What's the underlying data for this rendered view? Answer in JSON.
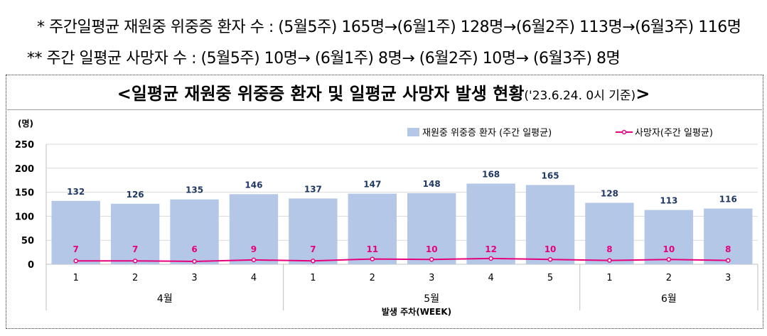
{
  "notes": {
    "line1": "*  주간일평균 재원중 위중증 환자 수 : (5월5주) 165명→(6월1주) 128명→(6월2주) 113명→(6월3주) 116명",
    "line2": "** 주간 일평균 사망자 수 : (5월5주) 10명→ (6월1주) 8명→ (6월2주) 10명→ (6월3주) 8명"
  },
  "title": {
    "main": "<일평균 재원중 위중증 환자 및 일평균 사망자 발생 현황",
    "sub": "('23.6.24. 0시 기준)",
    "close": ">"
  },
  "chart_data": {
    "type": "bar",
    "title": "<일평균 재원중 위중증 환자 및 일평균 사망자 발생 현황('23.6.24. 0시 기준)>",
    "ylabel": "(명)",
    "xlabel": "발생 주차(WEEK)",
    "ylim": [
      0,
      250
    ],
    "yticks": [
      "0",
      "50",
      "100",
      "150",
      "200",
      "250"
    ],
    "grid": true,
    "legend_position": "top-right",
    "categories": [
      "1",
      "2",
      "3",
      "4",
      "1",
      "2",
      "3",
      "4",
      "5",
      "1",
      "2",
      "3"
    ],
    "groups": [
      {
        "label": "4월",
        "count": 4
      },
      {
        "label": "5월",
        "count": 5
      },
      {
        "label": "6월",
        "count": 3
      }
    ],
    "series": [
      {
        "name": "재원중 위중증 환자 (주간 일평균)",
        "type": "bar",
        "color": "#b4c7e7",
        "values": [
          132,
          126,
          135,
          146,
          137,
          147,
          148,
          168,
          165,
          128,
          113,
          116
        ]
      },
      {
        "name": "사망자(주간 일평균)",
        "type": "line",
        "color": "#e6007e",
        "values": [
          7,
          7,
          6,
          9,
          7,
          11,
          10,
          12,
          10,
          8,
          10,
          8
        ]
      }
    ],
    "colors": {
      "bar": "#b4c7e7",
      "bar_label": "#1f3864",
      "line": "#e6007e"
    }
  }
}
